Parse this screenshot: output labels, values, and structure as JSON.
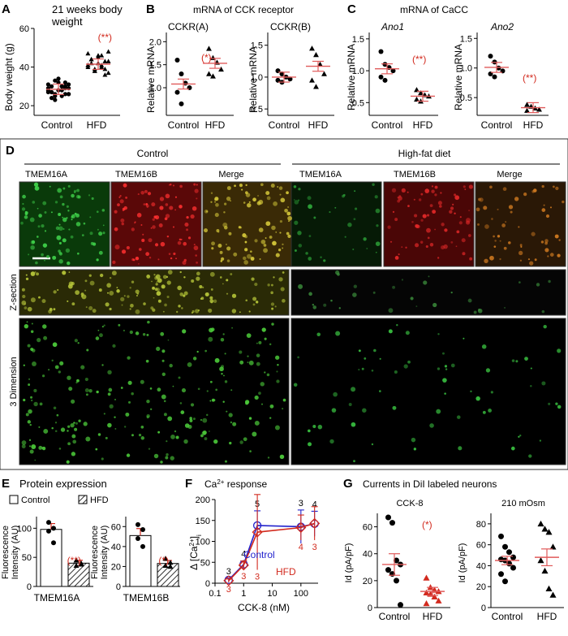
{
  "panels": {
    "A": {
      "letter": "A",
      "title_line1": "21 weeks body",
      "title_line2": "weight",
      "ylabel": "Body weight (g)",
      "yticks": [
        "20",
        "40",
        "60"
      ],
      "categories": [
        "Control",
        "HFD"
      ],
      "significance": "(**)"
    },
    "B": {
      "letter": "B",
      "heading": "mRNA of CCK receptor",
      "sub1": "CCKR(A)",
      "sub2": "CCKR(B)",
      "ylabel": "Relative mRNA",
      "yticks1": [
        "1.0",
        "1.5",
        "2.0"
      ],
      "yticks2": [
        "0.5",
        "1.0",
        "1.5"
      ],
      "categories": [
        "Control",
        "HFD"
      ],
      "significance": "(*)"
    },
    "C": {
      "letter": "C",
      "heading": "mRNA of CaCC",
      "sub1": "Ano1",
      "sub2": "Ano2",
      "ylabel": "Relative mRNA",
      "yticks": [
        "0.5",
        "1.0",
        "1.5"
      ],
      "categories": [
        "Control",
        "HFD"
      ],
      "significance": "(**)"
    },
    "D": {
      "letter": "D",
      "group1": "Control",
      "group2": "High-fat diet",
      "cols": [
        "TMEM16A",
        "TMEM16B",
        "Merge"
      ],
      "row2": "Z-section",
      "row3": "3 Dimension"
    },
    "E": {
      "letter": "E",
      "title": "Protein expression",
      "legend": [
        "Control",
        "HFD"
      ],
      "ylabel1": "Fluorescence",
      "ylabel2": "Intensity (AU)",
      "yticks1": [
        "0",
        "50",
        "100"
      ],
      "yticks2": [
        "0",
        "20",
        "40",
        "60"
      ],
      "xlabel1": "TMEM16A",
      "xlabel2": "TMEM16B",
      "sig1": "(**)",
      "sig2": "(*)"
    },
    "F": {
      "letter": "F",
      "title": "Ca2+ response",
      "ylabel": "Δ [Ca2+]i",
      "xlabel": "CCK-8 (nM)",
      "yticks": [
        "0",
        "50",
        "100",
        "150",
        "200"
      ],
      "xticks": [
        "0.1",
        "1",
        "10",
        "100"
      ],
      "series_labels": [
        "Control",
        "HFD"
      ],
      "n_control": [
        "3",
        "4",
        "5",
        "3",
        "4"
      ],
      "n_hfd": [
        "3",
        "3",
        "3",
        "4",
        "3"
      ]
    },
    "G": {
      "letter": "G",
      "title": "Currents in DiI labeled neurons",
      "sub1": "CCK-8",
      "sub2": "210 mOsm",
      "ylabel": "Id (pA/pF)",
      "yticks1": [
        "0",
        "20",
        "40",
        "60"
      ],
      "yticks2": [
        "0",
        "20",
        "40",
        "60",
        "80"
      ],
      "categories": [
        "Control",
        "HFD"
      ],
      "significance": "(*)"
    }
  },
  "colors": {
    "significance": "#d22a1e",
    "mean_line": "#e05a5a",
    "control_line": "#2222cc",
    "hfd_line": "#d22a1e",
    "green": "#2ecc40",
    "red": "#e02020"
  },
  "chart_data": [
    {
      "type": "scatter",
      "panel": "A",
      "categories": [
        "Control",
        "HFD"
      ],
      "ylim": [
        15,
        60
      ],
      "series": [
        {
          "name": "Control",
          "values": [
            28,
            30,
            26,
            32,
            25,
            29,
            31,
            27,
            24,
            33,
            28,
            30,
            26,
            29,
            31,
            27,
            25,
            28,
            30,
            32,
            26,
            29,
            27,
            23,
            34,
            28,
            30,
            26
          ]
        },
        {
          "name": "HFD",
          "values": [
            41,
            44,
            38,
            46,
            40,
            43,
            37,
            47,
            42,
            39,
            45,
            41,
            36,
            48,
            40,
            44,
            38,
            42,
            46,
            39,
            43,
            41
          ]
        }
      ],
      "means": [
        28.5,
        41.5
      ]
    },
    {
      "type": "scatter",
      "panel": "B-CCKR(A)",
      "categories": [
        "Control",
        "HFD"
      ],
      "ylim": [
        0.4,
        2.2
      ],
      "series": [
        {
          "name": "Control",
          "values": [
            1.6,
            1.3,
            1.1,
            1.0,
            0.9,
            0.65
          ]
        },
        {
          "name": "HFD",
          "values": [
            1.85,
            1.65,
            1.55,
            1.4,
            1.3,
            1.25
          ]
        }
      ],
      "means": [
        1.08,
        1.53
      ]
    },
    {
      "type": "scatter",
      "panel": "B-CCKR(B)",
      "categories": [
        "Control",
        "HFD"
      ],
      "ylim": [
        0.4,
        1.7
      ],
      "series": [
        {
          "name": "Control",
          "values": [
            1.1,
            1.05,
            1.0,
            0.97,
            0.95,
            0.92
          ]
        },
        {
          "name": "HFD",
          "values": [
            1.45,
            1.35,
            1.2,
            1.05,
            0.95,
            0.85
          ]
        }
      ],
      "means": [
        1.0,
        1.17
      ]
    },
    {
      "type": "scatter",
      "panel": "C-Ano1",
      "categories": [
        "Control",
        "HFD"
      ],
      "ylim": [
        0.3,
        1.6
      ],
      "series": [
        {
          "name": "Control",
          "values": [
            1.3,
            1.1,
            1.05,
            1.0,
            0.9,
            0.85
          ]
        },
        {
          "name": "HFD",
          "values": [
            0.7,
            0.65,
            0.62,
            0.6,
            0.55,
            0.52
          ]
        }
      ],
      "means": [
        1.03,
        0.6
      ]
    },
    {
      "type": "scatter",
      "panel": "C-Ano2",
      "categories": [
        "Control",
        "HFD"
      ],
      "ylim": [
        0.2,
        1.6
      ],
      "series": [
        {
          "name": "Control",
          "values": [
            1.2,
            1.1,
            1.0,
            0.95,
            0.9,
            0.85
          ]
        },
        {
          "name": "HFD",
          "values": [
            0.38,
            0.35,
            0.32,
            0.3,
            0.28
          ]
        }
      ],
      "means": [
        1.01,
        0.33
      ]
    },
    {
      "type": "bar",
      "panel": "E-TMEM16A",
      "categories": [
        "Control",
        "HFD"
      ],
      "values": [
        98,
        40
      ],
      "errors": [
        10,
        5
      ],
      "ylim": [
        0,
        120
      ],
      "points": [
        [
          110,
          100,
          95,
          75
        ],
        [
          45,
          40,
          36,
          38
        ]
      ]
    },
    {
      "type": "bar",
      "panel": "E-TMEM16B",
      "categories": [
        "Control",
        "HFD"
      ],
      "values": [
        51,
        23
      ],
      "errors": [
        7,
        3
      ],
      "ylim": [
        0,
        70
      ],
      "points": [
        [
          62,
          57,
          48,
          40
        ],
        [
          28,
          24,
          21,
          20
        ]
      ]
    },
    {
      "type": "line",
      "panel": "F",
      "xscale": "log",
      "x": [
        0.3,
        1,
        3,
        100,
        300
      ],
      "ylim": [
        0,
        200
      ],
      "series": [
        {
          "name": "Control",
          "values": [
            8,
            45,
            138,
            135,
            142
          ],
          "errors": [
            4,
            8,
            35,
            40,
            30
          ]
        },
        {
          "name": "HFD",
          "values": [
            6,
            43,
            122,
            133,
            143
          ],
          "errors": [
            4,
            10,
            90,
            30,
            40
          ]
        }
      ]
    },
    {
      "type": "scatter",
      "panel": "G-CCK-8",
      "categories": [
        "Control",
        "HFD"
      ],
      "ylim": [
        0,
        70
      ],
      "series": [
        {
          "name": "Control",
          "values": [
            67,
            63,
            35,
            32,
            28,
            25,
            20,
            2
          ]
        },
        {
          "name": "HFD",
          "values": [
            22,
            15,
            13,
            12,
            11,
            10,
            8,
            5,
            3
          ]
        }
      ],
      "means": [
        32,
        12
      ],
      "sem": [
        8,
        3
      ]
    },
    {
      "type": "scatter",
      "panel": "G-210 mOsm",
      "categories": [
        "Control",
        "HFD"
      ],
      "ylim": [
        0,
        90
      ],
      "series": [
        {
          "name": "Control",
          "values": [
            68,
            58,
            53,
            48,
            46,
            45,
            42,
            38,
            32,
            25
          ]
        },
        {
          "name": "HFD",
          "values": [
            80,
            75,
            72,
            58,
            45,
            35,
            18,
            12
          ]
        }
      ],
      "means": [
        45,
        48
      ],
      "sem": [
        4,
        8
      ]
    }
  ]
}
